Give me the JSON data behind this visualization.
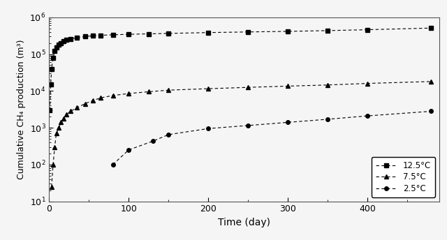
{
  "title": "",
  "xlabel": "Time (day)",
  "ylabel": "Cumulative CH₄ production (m³)",
  "xlim": [
    0,
    490
  ],
  "ylim_log": [
    10,
    1000000
  ],
  "series": [
    {
      "label": "12.5°C",
      "marker": "s",
      "color": "#000000",
      "linestyle": "--",
      "x": [
        1,
        2,
        3,
        5,
        7,
        9,
        12,
        15,
        18,
        22,
        27,
        35,
        45,
        55,
        65,
        80,
        100,
        125,
        150,
        200,
        250,
        300,
        350,
        400,
        480
      ],
      "y": [
        3000,
        15000,
        40000,
        80000,
        120000,
        150000,
        180000,
        200000,
        220000,
        240000,
        260000,
        280000,
        300000,
        315000,
        325000,
        335000,
        345000,
        355000,
        365000,
        385000,
        400000,
        415000,
        435000,
        460000,
        510000
      ]
    },
    {
      "label": "7.5°C",
      "marker": "^",
      "color": "#000000",
      "linestyle": "--",
      "x": [
        3,
        5,
        7,
        9,
        12,
        15,
        18,
        22,
        27,
        35,
        45,
        55,
        65,
        80,
        100,
        125,
        150,
        200,
        250,
        300,
        350,
        400,
        480
      ],
      "y": [
        25,
        100,
        300,
        700,
        1000,
        1400,
        1800,
        2300,
        2800,
        3500,
        4500,
        5500,
        6500,
        7500,
        8500,
        9500,
        10500,
        11500,
        12500,
        13500,
        14500,
        16000,
        18000
      ]
    },
    {
      "label": "2.5°C",
      "marker": "o",
      "color": "#000000",
      "linestyle": "--",
      "x": [
        80,
        100,
        130,
        150,
        200,
        250,
        300,
        350,
        400,
        480
      ],
      "y": [
        100,
        250,
        430,
        650,
        950,
        1150,
        1400,
        1700,
        2100,
        2800
      ]
    }
  ],
  "legend_loc": "lower right",
  "background_color": "#f5f5f5",
  "grid": false,
  "markersize": 4,
  "linewidth": 0.8
}
